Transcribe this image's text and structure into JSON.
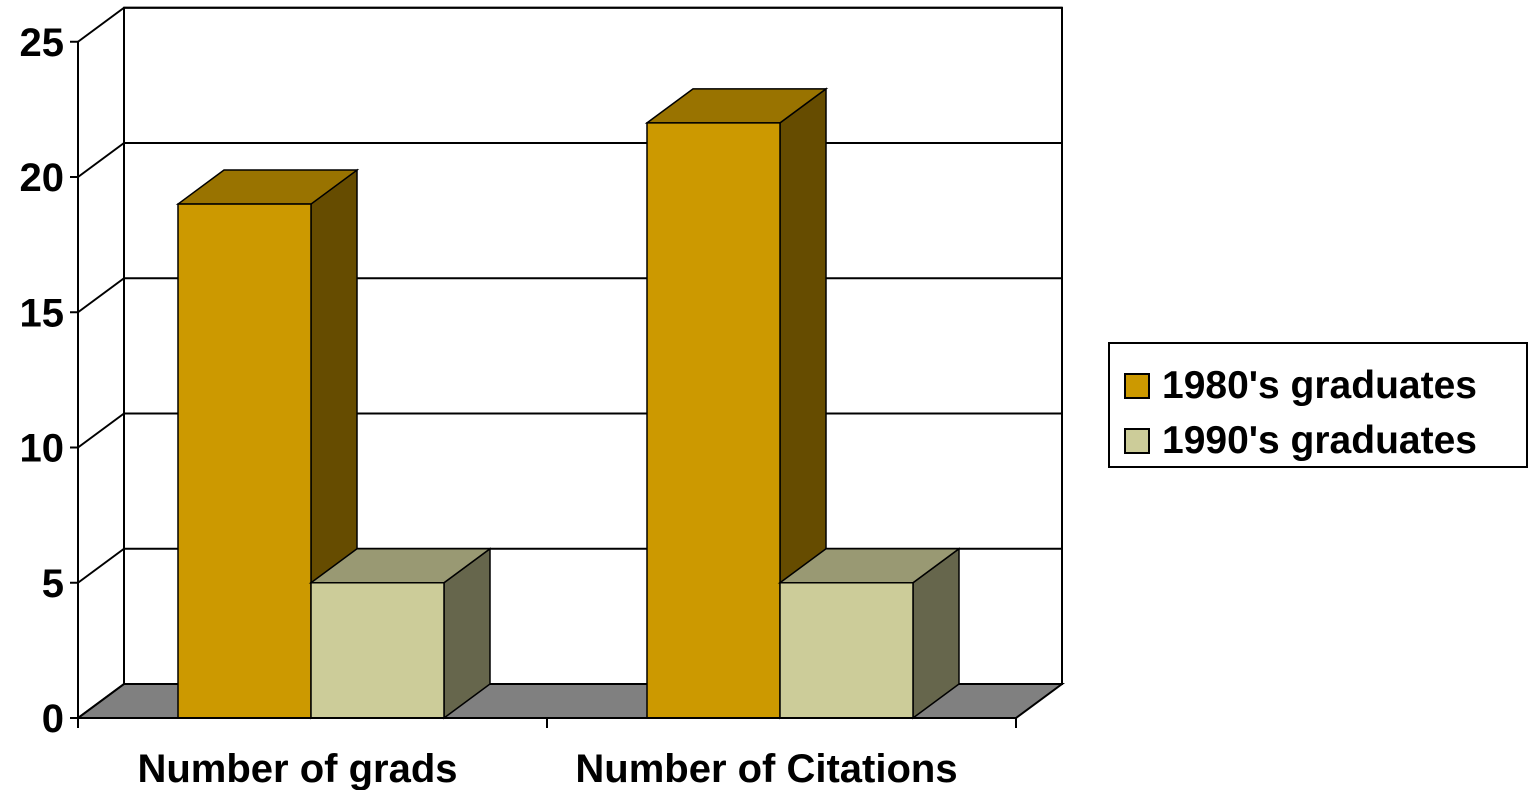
{
  "chart_data": {
    "type": "bar",
    "categories": [
      "Number of grads",
      "Number of Citations"
    ],
    "series": [
      {
        "name": "1980's graduates",
        "values": [
          19,
          22
        ],
        "color": "#CC9900",
        "top_color": "#997300",
        "side_color": "#664C00"
      },
      {
        "name": "1990's graduates",
        "values": [
          5,
          5
        ],
        "color": "#CCCC99",
        "top_color": "#999973",
        "side_color": "#66664C"
      }
    ],
    "yticks": [
      0,
      5,
      10,
      15,
      20,
      25
    ],
    "ylim": [
      0,
      25
    ],
    "grid": true,
    "floor_color": "#808080",
    "legend_position": "right",
    "title": "",
    "xlabel": "",
    "ylabel": ""
  }
}
